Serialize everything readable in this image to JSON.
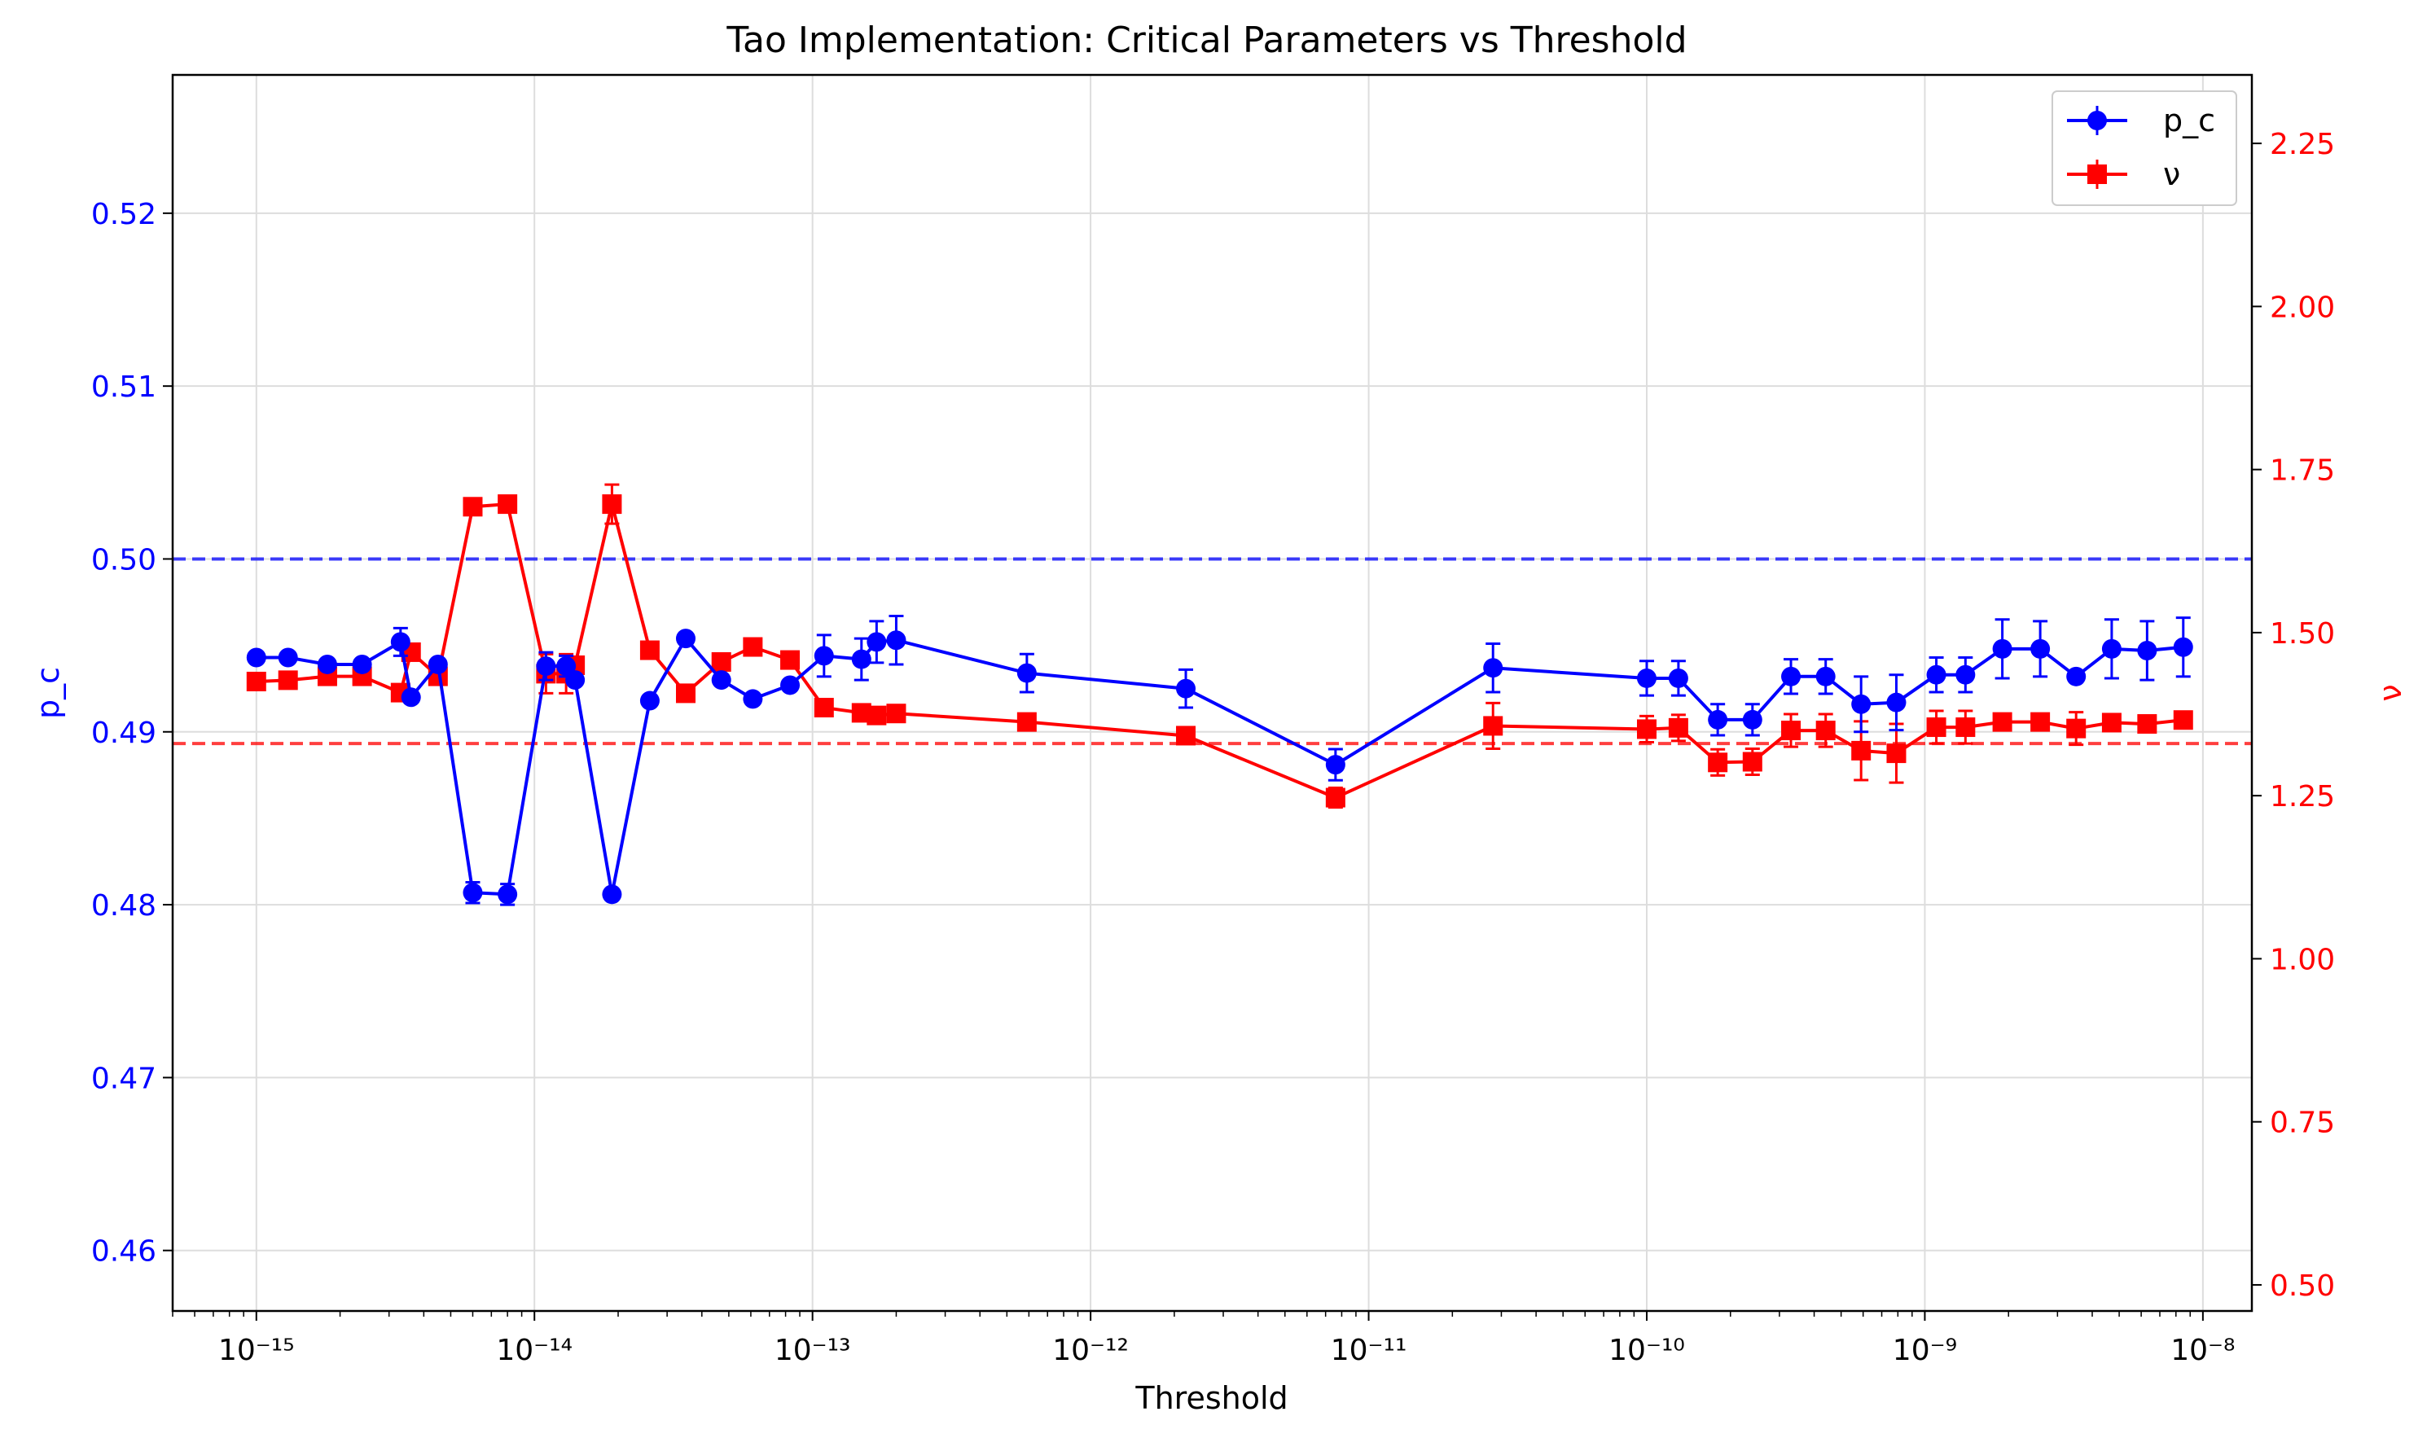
{
  "chart_data": {
    "type": "line",
    "title": "Tao Implementation: Critical Parameters vs Threshold",
    "xlabel": "Threshold",
    "ylabel_left": "p_c",
    "ylabel_right": "ν",
    "xscale": "log",
    "xlim": [
      5e-16,
      1.5e-08
    ],
    "ylim_left": [
      0.4565,
      0.528
    ],
    "ylim_right": [
      0.46,
      2.355
    ],
    "x_ticks": [
      {
        "label": "10⁻¹⁵",
        "value": 1e-15
      },
      {
        "label": "10⁻¹⁴",
        "value": 1e-14
      },
      {
        "label": "10⁻¹³",
        "value": 1e-13
      },
      {
        "label": "10⁻¹²",
        "value": 1e-12
      },
      {
        "label": "10⁻¹¹",
        "value": 1e-11
      },
      {
        "label": "10⁻¹⁰",
        "value": 1e-10
      },
      {
        "label": "10⁻⁹",
        "value": 1e-09
      },
      {
        "label": "10⁻⁸",
        "value": 1e-08
      }
    ],
    "y_ticks_left": [
      "0.46",
      "0.47",
      "0.48",
      "0.49",
      "0.50",
      "0.51",
      "0.52"
    ],
    "y_ticks_right": [
      "0.50",
      "0.75",
      "1.00",
      "1.25",
      "1.50",
      "1.75",
      "2.00",
      "2.25"
    ],
    "grid": true,
    "legend_position": "top-right",
    "reference_lines": [
      {
        "axis": "left",
        "value": 0.5,
        "color": "#0000ff",
        "style": "dashed"
      },
      {
        "axis": "right",
        "value": 1.33,
        "color": "#ff0000",
        "style": "dashed"
      }
    ],
    "x": [
      1e-15,
      1.3e-15,
      1.8e-15,
      2.4e-15,
      3.3e-15,
      3.6e-15,
      4.5e-15,
      6e-15,
      8e-15,
      1.1e-14,
      1.3e-14,
      1.4e-14,
      1.9e-14,
      2.6e-14,
      3.5e-14,
      4.7e-14,
      6.1e-14,
      8.3e-14,
      1.1e-13,
      1.5e-13,
      1.7e-13,
      2e-13,
      5.9e-13,
      2.2e-12,
      7.6e-12,
      2.8e-11,
      1e-10,
      1.3e-10,
      1.8e-10,
      2.4e-10,
      3.3e-10,
      4.4e-10,
      5.9e-10,
      7.9e-10,
      1.1e-09,
      1.4e-09,
      1.9e-09,
      2.6e-09,
      3.5e-09,
      4.7e-09,
      6.3e-09,
      8.5e-09
    ],
    "series": [
      {
        "name": "p_c",
        "axis": "left",
        "color": "#0000ff",
        "marker": "circle",
        "values": [
          0.4943,
          0.4943,
          0.4939,
          0.4939,
          0.4952,
          0.492,
          0.4939,
          0.4807,
          0.4806,
          0.4938,
          0.4938,
          0.493,
          0.4806,
          0.4918,
          0.4954,
          0.493,
          0.4919,
          0.4927,
          0.4944,
          0.4942,
          0.4952,
          0.4953,
          0.4934,
          0.4925,
          0.4881,
          0.4937,
          0.4931,
          0.4931,
          0.4907,
          0.4907,
          0.4932,
          0.4932,
          0.4916,
          0.4917,
          0.4933,
          0.4933,
          0.4948,
          0.4948,
          0.4932,
          0.4948,
          0.4947,
          0.4949
        ],
        "errors": [
          0.0002,
          0.0002,
          0.0002,
          0.0002,
          0.0008,
          0.0002,
          0.0002,
          0.0006,
          0.0006,
          0.0008,
          0.0006,
          0.0002,
          0.0002,
          0.0002,
          0.0002,
          0.0002,
          0.0002,
          0.0003,
          0.0012,
          0.0012,
          0.0012,
          0.0014,
          0.0011,
          0.0011,
          0.0009,
          0.0014,
          0.001,
          0.001,
          0.0009,
          0.0009,
          0.001,
          0.001,
          0.0016,
          0.0016,
          0.001,
          0.001,
          0.0017,
          0.0016,
          0.0002,
          0.0017,
          0.0017,
          0.0017
        ]
      },
      {
        "name": "ν",
        "axis": "right",
        "color": "#ff0000",
        "marker": "square",
        "values": [
          1.425,
          1.427,
          1.433,
          1.433,
          1.408,
          1.47,
          1.433,
          1.693,
          1.697,
          1.437,
          1.437,
          1.45,
          1.697,
          1.473,
          1.407,
          1.455,
          1.478,
          1.458,
          1.385,
          1.377,
          1.373,
          1.376,
          1.363,
          1.342,
          1.247,
          1.357,
          1.352,
          1.354,
          1.301,
          1.302,
          1.35,
          1.35,
          1.319,
          1.315,
          1.355,
          1.355,
          1.363,
          1.363,
          1.353,
          1.362,
          1.36,
          1.366
        ],
        "errors": [
          0.008,
          0.008,
          0.008,
          0.008,
          0.008,
          0.008,
          0.008,
          0.008,
          0.008,
          0.03,
          0.03,
          0.008,
          0.03,
          0.008,
          0.008,
          0.008,
          0.008,
          0.008,
          0.008,
          0.008,
          0.008,
          0.008,
          0.008,
          0.008,
          0.015,
          0.035,
          0.02,
          0.02,
          0.02,
          0.02,
          0.025,
          0.025,
          0.045,
          0.045,
          0.025,
          0.025,
          0.008,
          0.008,
          0.025,
          0.008,
          0.008,
          0.008
        ]
      }
    ]
  }
}
